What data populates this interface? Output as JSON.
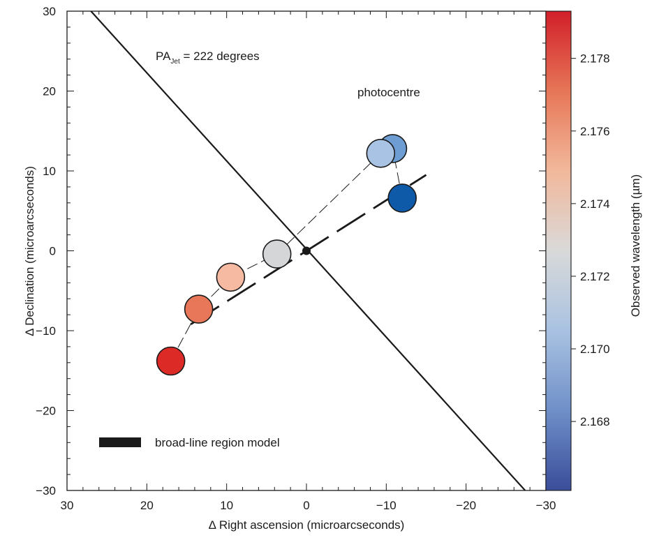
{
  "chart_data": {
    "type": "scatter",
    "xlabel": "Δ Right ascension (microarcseconds)",
    "ylabel": "Δ Declination (microarcseconds)",
    "xlim": [
      30,
      -30
    ],
    "ylim": [
      -30,
      30
    ],
    "x_ticks": [
      30,
      20,
      10,
      0,
      -10,
      -20,
      -30
    ],
    "y_ticks": [
      30,
      20,
      10,
      0,
      -10,
      -20,
      -30
    ],
    "x_tick_labels": [
      "30",
      "20",
      "10",
      "0",
      "−10",
      "−20",
      "−30"
    ],
    "y_tick_labels": [
      "30",
      "20",
      "10",
      "0",
      "−10",
      "−20",
      "−30"
    ],
    "grid": false,
    "annotations": {
      "pa_main": "PA",
      "pa_sub": "Jet",
      "pa_value": " = 222 degrees",
      "photocentre": "photocentre"
    },
    "legend": {
      "label": "broad-line region model",
      "placement": "bottom-left"
    },
    "colorbar": {
      "label": "Observed wavelength (µm)",
      "range": [
        2.1661,
        2.1793
      ],
      "ticks": [
        2.168,
        2.17,
        2.172,
        2.174,
        2.176,
        2.178
      ],
      "tick_labels": [
        "2.168",
        "2.170",
        "2.172",
        "2.174",
        "2.176",
        "2.178"
      ],
      "colors": [
        "#3a4d9a",
        "#6f8fc8",
        "#a9c2e2",
        "#d9d9d9",
        "#f2b89b",
        "#e67657",
        "#d21f2a"
      ]
    },
    "photocentre_points": [
      {
        "x": 17.0,
        "y": -13.8,
        "wavelength": 2.179,
        "color": "#dc2a26"
      },
      {
        "x": 13.5,
        "y": -7.3,
        "wavelength": 2.1775,
        "color": "#e8775a"
      },
      {
        "x": 9.5,
        "y": -3.3,
        "wavelength": 2.1752,
        "color": "#f6b9a2"
      },
      {
        "x": 3.7,
        "y": -0.4,
        "wavelength": 2.173,
        "color": "#d5d6d8"
      },
      {
        "x": -9.3,
        "y": 12.2,
        "wavelength": 2.1708,
        "color": "#a8c3e4"
      },
      {
        "x": -10.8,
        "y": 12.8,
        "wavelength": 2.1695,
        "color": "#6d9dd2"
      },
      {
        "x": -12.0,
        "y": 6.6,
        "wavelength": 2.1665,
        "color": "#0e5aa8"
      }
    ],
    "jet_line": {
      "x": [
        27.0,
        -27.4
      ],
      "y": [
        30.0,
        -30.0
      ]
    },
    "model_line": {
      "x": [
        14.5,
        -15.0
      ],
      "y": [
        -9.2,
        9.5
      ]
    },
    "origin_marker": {
      "x": 0,
      "y": 0
    }
  }
}
